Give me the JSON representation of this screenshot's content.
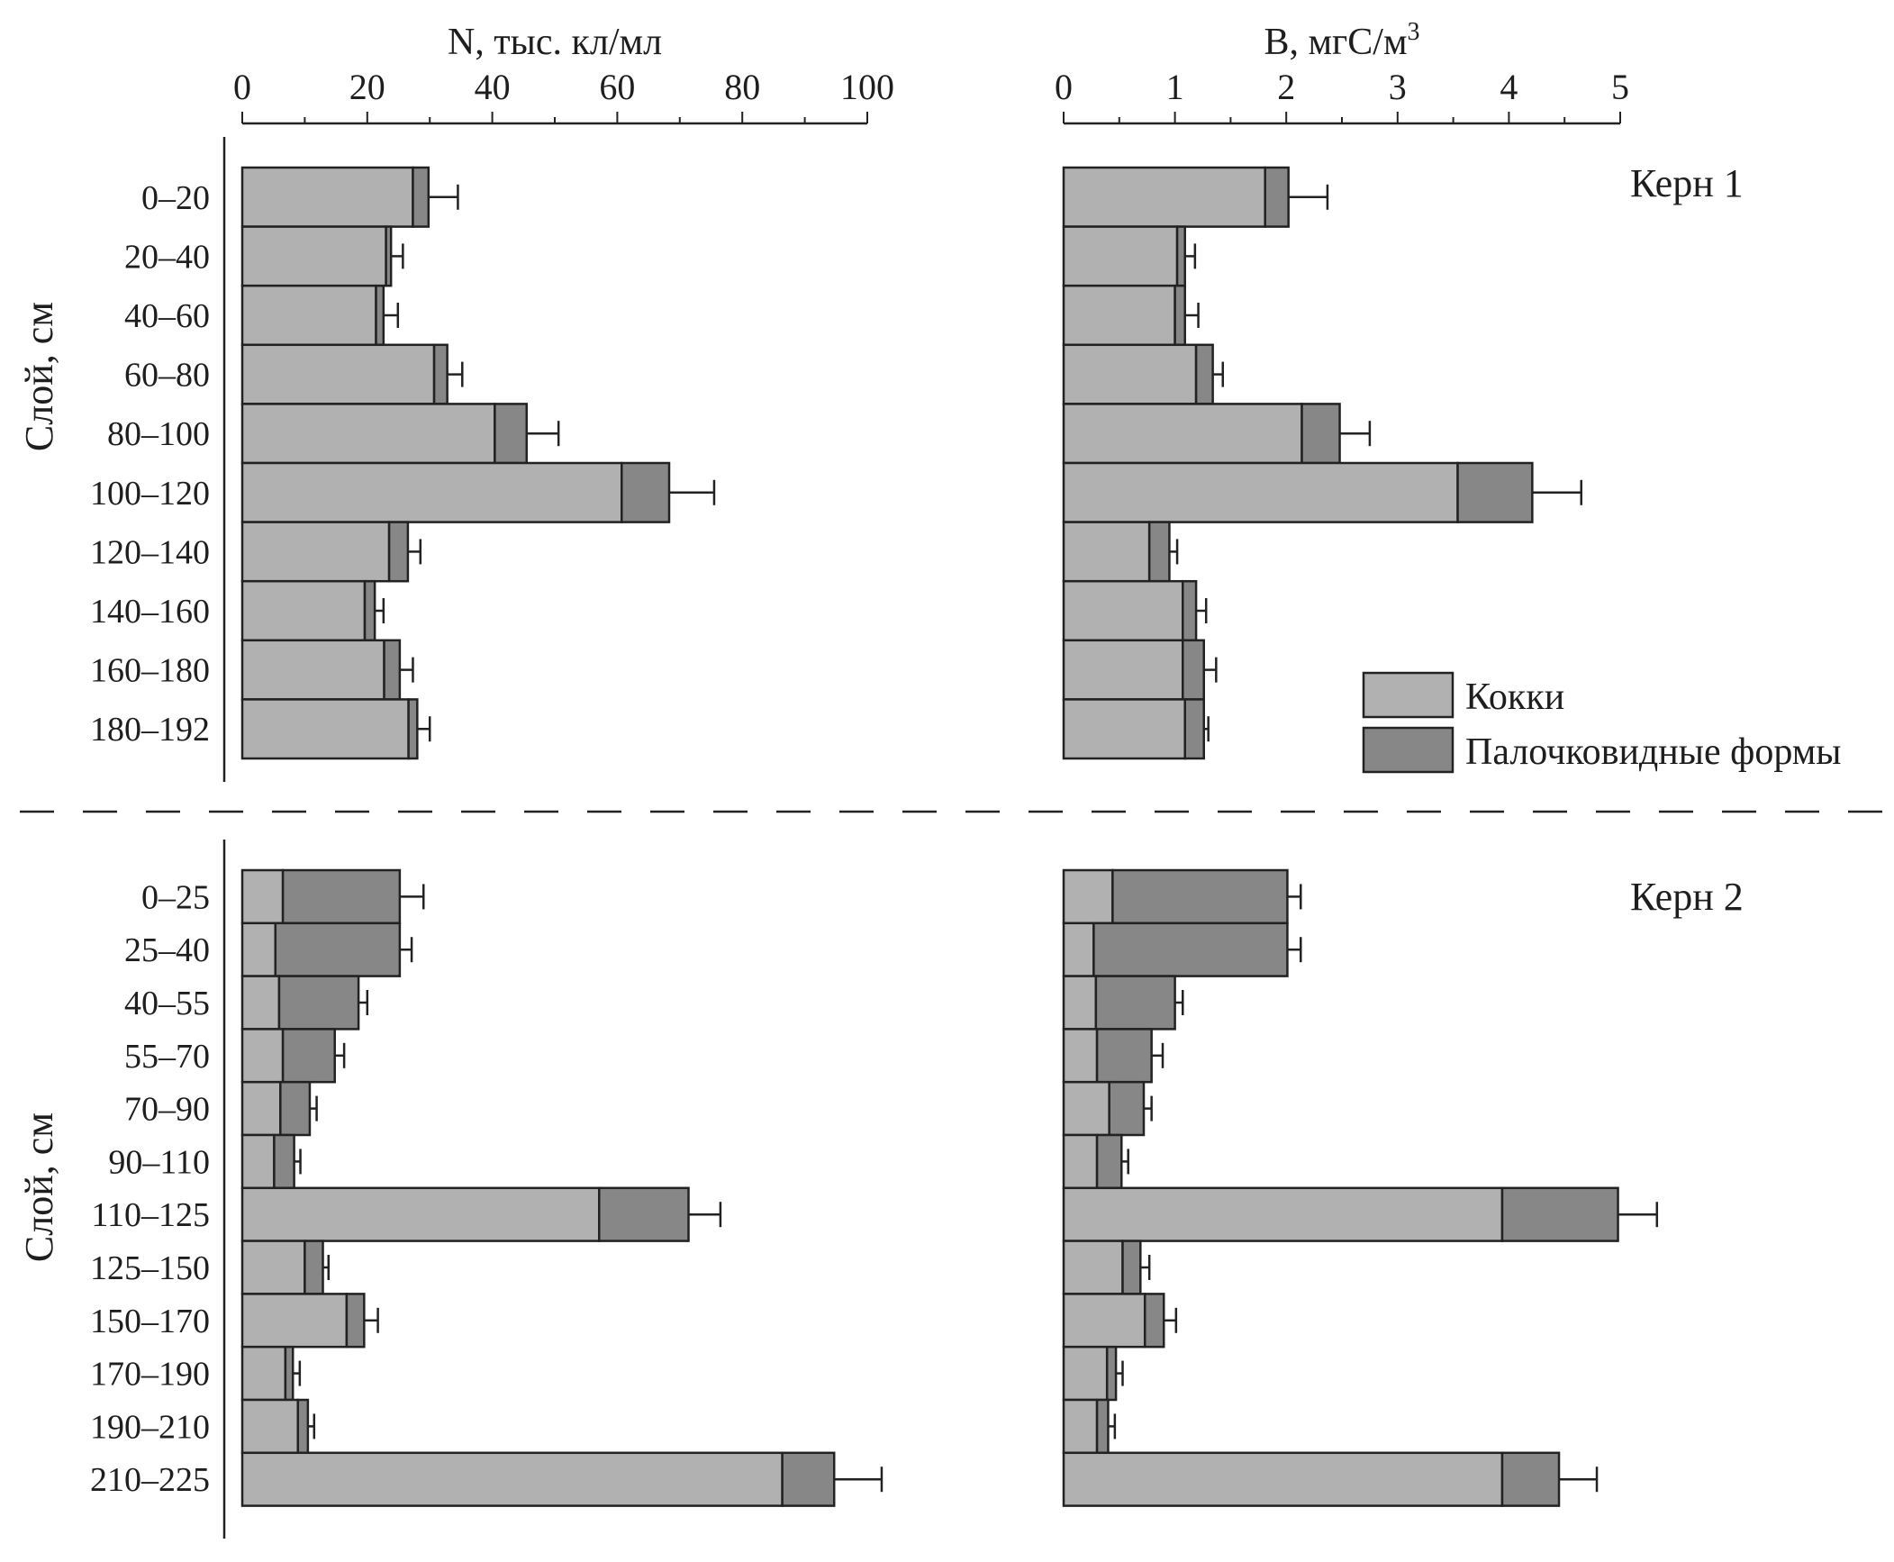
{
  "chart_data": [
    {
      "type": "bar",
      "orientation": "horizontal",
      "stacked": true,
      "panel": "Керн 1",
      "title": "",
      "xlabel": "N, тыс. кл/мл",
      "ylabel": "Слой, см",
      "xlim": [
        0,
        100
      ],
      "xticks": [
        0,
        20,
        40,
        60,
        80,
        100
      ],
      "xticks_minor_step": 10,
      "categories": [
        "0–20",
        "20–40",
        "40–60",
        "60–80",
        "80–100",
        "100–120",
        "120–140",
        "140–160",
        "160–180",
        "180–192"
      ],
      "series": [
        {
          "name": "Кокки",
          "values": [
            27.3,
            23.0,
            21.4,
            30.7,
            40.4,
            60.7,
            23.5,
            19.6,
            22.7,
            26.6
          ]
        },
        {
          "name": "Палочковидные формы",
          "values": [
            2.5,
            0.8,
            1.2,
            2.1,
            5.1,
            7.6,
            3.0,
            1.6,
            2.5,
            1.4
          ]
        }
      ],
      "error_upper_total": [
        34.5,
        25.7,
        24.9,
        35.2,
        50.6,
        75.5,
        28.5,
        22.6,
        27.3,
        30.0
      ]
    },
    {
      "type": "bar",
      "orientation": "horizontal",
      "stacked": true,
      "panel": "Керн 1",
      "title": "",
      "xlabel": "B, мгС/м³",
      "ylabel": "",
      "xlim": [
        0,
        5
      ],
      "xticks": [
        0,
        1,
        2,
        3,
        4,
        5
      ],
      "xticks_minor_step": 0.5,
      "categories": [
        "0–20",
        "20–40",
        "40–60",
        "60–80",
        "80–100",
        "100–120",
        "120–140",
        "140–160",
        "160–180",
        "180–192"
      ],
      "series": [
        {
          "name": "Кокки",
          "values": [
            1.81,
            1.02,
            1.0,
            1.19,
            2.14,
            3.54,
            0.77,
            1.07,
            1.07,
            1.09
          ]
        },
        {
          "name": "Палочковидные формы",
          "values": [
            0.21,
            0.07,
            0.09,
            0.15,
            0.34,
            0.67,
            0.18,
            0.12,
            0.19,
            0.17
          ]
        }
      ],
      "error_upper_total": [
        2.37,
        1.18,
        1.21,
        1.43,
        2.75,
        4.65,
        1.02,
        1.28,
        1.37,
        1.3
      ]
    },
    {
      "type": "bar",
      "orientation": "horizontal",
      "stacked": true,
      "panel": "Керн 2",
      "title": "",
      "xlabel": "N, тыс. кл/мл",
      "ylabel": "Слой, см",
      "xlim": [
        0,
        100
      ],
      "categories": [
        "0–25",
        "25–40",
        "40–55",
        "55–70",
        "70–90",
        "90–110",
        "110–125",
        "125–150",
        "150–170",
        "170–190",
        "190–210",
        "210–225"
      ],
      "series": [
        {
          "name": "Кокки",
          "values": [
            6.5,
            5.3,
            5.9,
            6.5,
            6.1,
            5.1,
            57.1,
            10.0,
            16.7,
            6.9,
            8.9,
            86.4
          ]
        },
        {
          "name": "Палочковидные формы",
          "values": [
            18.7,
            19.9,
            12.7,
            8.3,
            4.7,
            3.2,
            14.3,
            2.9,
            2.8,
            1.2,
            1.6,
            8.3
          ]
        }
      ],
      "error_upper_total": [
        29.0,
        27.1,
        20.0,
        16.3,
        11.9,
        9.3,
        76.5,
        13.8,
        21.7,
        9.2,
        11.5,
        102.3
      ]
    },
    {
      "type": "bar",
      "orientation": "horizontal",
      "stacked": true,
      "panel": "Керн 2",
      "title": "",
      "xlabel": "B, мгС/м³",
      "ylabel": "",
      "xlim": [
        0,
        5
      ],
      "categories": [
        "0–25",
        "25–40",
        "40–55",
        "55–70",
        "70–90",
        "90–110",
        "110–125",
        "125–150",
        "150–170",
        "170–190",
        "190–210",
        "210–225"
      ],
      "series": [
        {
          "name": "Кокки",
          "values": [
            0.44,
            0.27,
            0.29,
            0.3,
            0.41,
            0.3,
            3.94,
            0.53,
            0.73,
            0.39,
            0.3,
            3.94
          ]
        },
        {
          "name": "Палочковидные формы",
          "values": [
            1.57,
            1.74,
            0.71,
            0.49,
            0.31,
            0.22,
            1.04,
            0.16,
            0.17,
            0.08,
            0.1,
            0.51
          ]
        }
      ],
      "error_upper_total": [
        2.13,
        2.13,
        1.07,
        0.89,
        0.79,
        0.58,
        5.33,
        0.77,
        1.01,
        0.53,
        0.46,
        4.79
      ]
    }
  ],
  "axes": {
    "n": {
      "title": "N, тыс. кл/мл",
      "ticks": [
        "0",
        "20",
        "40",
        "60",
        "80",
        "100"
      ]
    },
    "b": {
      "title_main": "B, мгС/м",
      "title_sup": "3",
      "ticks": [
        "0",
        "1",
        "2",
        "3",
        "4",
        "5"
      ]
    }
  },
  "ylabel": "Слой, см",
  "panels": {
    "core1": {
      "label": "Керн 1"
    },
    "core2": {
      "label": "Керн 2"
    }
  },
  "legend": {
    "items": [
      {
        "label": "Кокки",
        "color": "#b1b1b1"
      },
      {
        "label": "Палочковидные формы",
        "color": "#878787"
      }
    ]
  },
  "colors": {
    "cocci": "#b1b1b1",
    "rods": "#878787",
    "outline": "#222222"
  }
}
